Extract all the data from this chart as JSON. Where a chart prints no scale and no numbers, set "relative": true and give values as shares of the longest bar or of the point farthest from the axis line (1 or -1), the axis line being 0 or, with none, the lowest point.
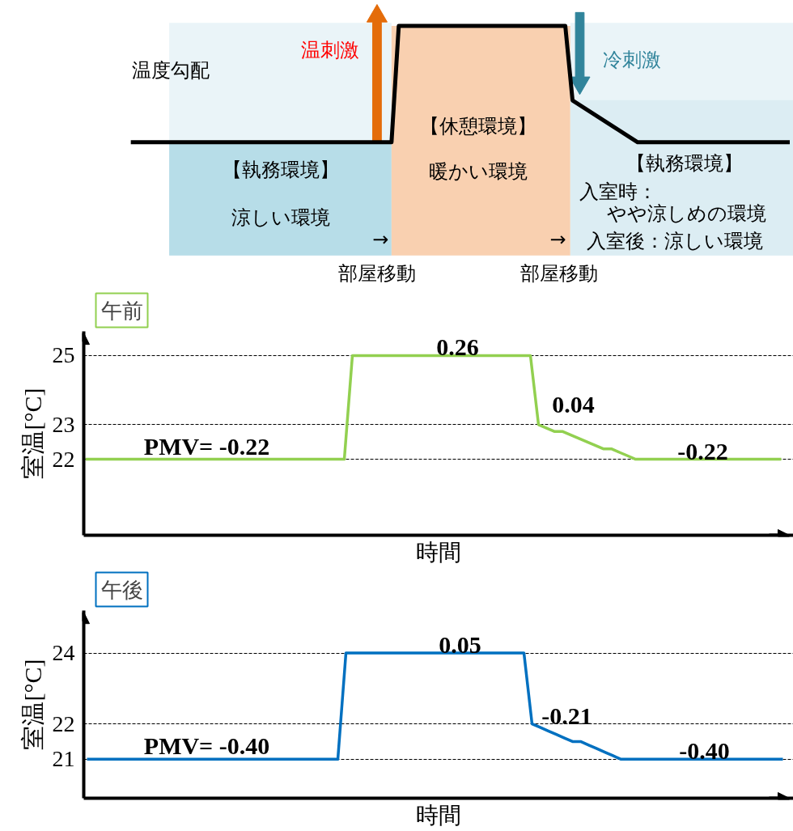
{
  "chart_data": [
    {
      "type": "line",
      "relative": true,
      "tick_labels": false,
      "grid": false,
      "categories": [
        null,
        null,
        null,
        null,
        null,
        null,
        null,
        null,
        null,
        null,
        null,
        null,
        null,
        null,
        null,
        null,
        null,
        null,
        null,
        null,
        null,
        null,
        null,
        null,
        null,
        null,
        null,
        null,
        null,
        null,
        null,
        null,
        null,
        null,
        null,
        null,
        null,
        null,
        null,
        null,
        null,
        null,
        null,
        null,
        null,
        null,
        null,
        null,
        null,
        null,
        null,
        null,
        null,
        null,
        null,
        null,
        null,
        null,
        null,
        null,
        null,
        null,
        null,
        null,
        null,
        null,
        null,
        null,
        null,
        null,
        null,
        null,
        null,
        null,
        null,
        null,
        null,
        null,
        null,
        null,
        null,
        null,
        null,
        null,
        null,
        null,
        null,
        null,
        null,
        null,
        null,
        null
      ],
      "series": [
        {
          "color": "#000000",
          "values": [
            0,
            0,
            0,
            0,
            0,
            0,
            0,
            0,
            0,
            0,
            0,
            0,
            0,
            0,
            0,
            0,
            0,
            0,
            0,
            0,
            0,
            0,
            0,
            0,
            0,
            0,
            0,
            0,
            0,
            0,
            0,
            0,
            0,
            0,
            0,
            0,
            0,
            1,
            1,
            1,
            1,
            1,
            1,
            1,
            1,
            1,
            1,
            1,
            1,
            1,
            1,
            1,
            1,
            1,
            1,
            1,
            1,
            1,
            1,
            1,
            1,
            0.36,
            0.32,
            0.28,
            0.24,
            0.2,
            0.16,
            0.12,
            0.08,
            0.04,
            0,
            0,
            0,
            0,
            0,
            0,
            0,
            0,
            0,
            0,
            0,
            0,
            0,
            0,
            0,
            0,
            0,
            0,
            0,
            0,
            0,
            0
          ]
        }
      ],
      "annotations": [
        "温度勾配",
        "温刺激",
        "冷刺激",
        "【休憩環境】",
        "暖かい環境",
        "【執務環境】",
        "涼しい環境",
        "【執務環境】",
        "入室時：",
        "やや涼しめの環境",
        "入室後：涼しい環境",
        "→",
        "→",
        "部屋移動",
        "部屋移動"
      ]
    },
    {
      "type": "line",
      "title": "午前",
      "ylabel": "室温[°C]",
      "xlabel": "時間",
      "tick_labels": "y",
      "grid": "y",
      "ylim": [
        19.8,
        25.7
      ],
      "yticks": [
        22,
        23,
        25
      ],
      "categories": [
        null,
        null,
        null,
        null,
        null,
        null,
        null,
        null,
        null,
        null,
        null,
        null,
        null,
        null,
        null,
        null,
        null,
        null,
        null,
        null,
        null,
        null,
        null,
        null,
        null,
        null,
        null,
        null,
        null,
        null,
        null,
        null,
        null,
        null,
        null,
        null,
        null,
        null,
        null,
        null,
        null,
        null,
        null,
        null,
        null,
        null,
        null,
        null,
        null,
        null,
        null,
        null,
        null,
        null,
        null,
        null,
        null,
        null,
        null,
        null,
        null,
        null,
        null,
        null,
        null,
        null,
        null,
        null,
        null,
        null,
        null,
        null,
        null,
        null,
        null,
        null,
        null,
        null,
        null,
        null,
        null,
        null,
        null,
        null,
        null,
        null,
        null
      ],
      "series": [
        {
          "color": "#92d050",
          "values": [
            22,
            22,
            22,
            22,
            22,
            22,
            22,
            22,
            22,
            22,
            22,
            22,
            22,
            22,
            22,
            22,
            22,
            22,
            22,
            22,
            22,
            22,
            22,
            22,
            22,
            22,
            22,
            22,
            22,
            22,
            22,
            22,
            22,
            25,
            25,
            25,
            25,
            25,
            25,
            25,
            25,
            25,
            25,
            25,
            25,
            25,
            25,
            25,
            25,
            25,
            25,
            25,
            25,
            25,
            25,
            25,
            23,
            22.9,
            22.8,
            22.8,
            22.7,
            22.6,
            22.5,
            22.4,
            22.3,
            22.3,
            22.2,
            22.1,
            22,
            22,
            22,
            22,
            22,
            22,
            22,
            22,
            22,
            22,
            22,
            22,
            22,
            22,
            22,
            22,
            22,
            22,
            22
          ]
        }
      ],
      "annotations": [
        {
          "text": "PMV= -0.22",
          "y": 22
        },
        {
          "text": "0.26",
          "y": 25
        },
        "0.04",
        {
          "text": "-0.22",
          "y": 22
        }
      ]
    },
    {
      "type": "line",
      "title": "午後",
      "ylabel": "室温[°C]",
      "xlabel": "時間",
      "tick_labels": "y",
      "grid": "y",
      "ylim": [
        19.9,
        25.2
      ],
      "yticks": [
        21,
        22,
        24
      ],
      "categories": [
        null,
        null,
        null,
        null,
        null,
        null,
        null,
        null,
        null,
        null,
        null,
        null,
        null,
        null,
        null,
        null,
        null,
        null,
        null,
        null,
        null,
        null,
        null,
        null,
        null,
        null,
        null,
        null,
        null,
        null,
        null,
        null,
        null,
        null,
        null,
        null,
        null,
        null,
        null,
        null,
        null,
        null,
        null,
        null,
        null,
        null,
        null,
        null,
        null,
        null,
        null,
        null,
        null,
        null,
        null,
        null,
        null,
        null,
        null,
        null,
        null,
        null,
        null,
        null,
        null,
        null,
        null,
        null,
        null,
        null,
        null,
        null,
        null,
        null,
        null,
        null,
        null,
        null,
        null,
        null,
        null,
        null,
        null,
        null,
        null,
        null,
        null
      ],
      "series": [
        {
          "color": "#0070c0",
          "values": [
            21,
            21,
            21,
            21,
            21,
            21,
            21,
            21,
            21,
            21,
            21,
            21,
            21,
            21,
            21,
            21,
            21,
            21,
            21,
            21,
            21,
            21,
            21,
            21,
            21,
            21,
            21,
            21,
            21,
            21,
            21,
            21,
            24,
            24,
            24,
            24,
            24,
            24,
            24,
            24,
            24,
            24,
            24,
            24,
            24,
            24,
            24,
            24,
            24,
            24,
            24,
            24,
            24,
            24,
            24,
            22,
            21.9,
            21.8,
            21.7,
            21.6,
            21.5,
            21.5,
            21.4,
            21.3,
            21.2,
            21.1,
            21,
            21,
            21,
            21,
            21,
            21,
            21,
            21,
            21,
            21,
            21,
            21,
            21,
            21,
            21,
            21,
            21,
            21,
            21,
            21,
            21
          ]
        }
      ],
      "annotations": [
        {
          "text": "PMV= -0.40",
          "y": 21
        },
        {
          "text": "0.05",
          "y": 24
        },
        "-0.21",
        {
          "text": "-0.40",
          "y": 21
        }
      ]
    }
  ]
}
